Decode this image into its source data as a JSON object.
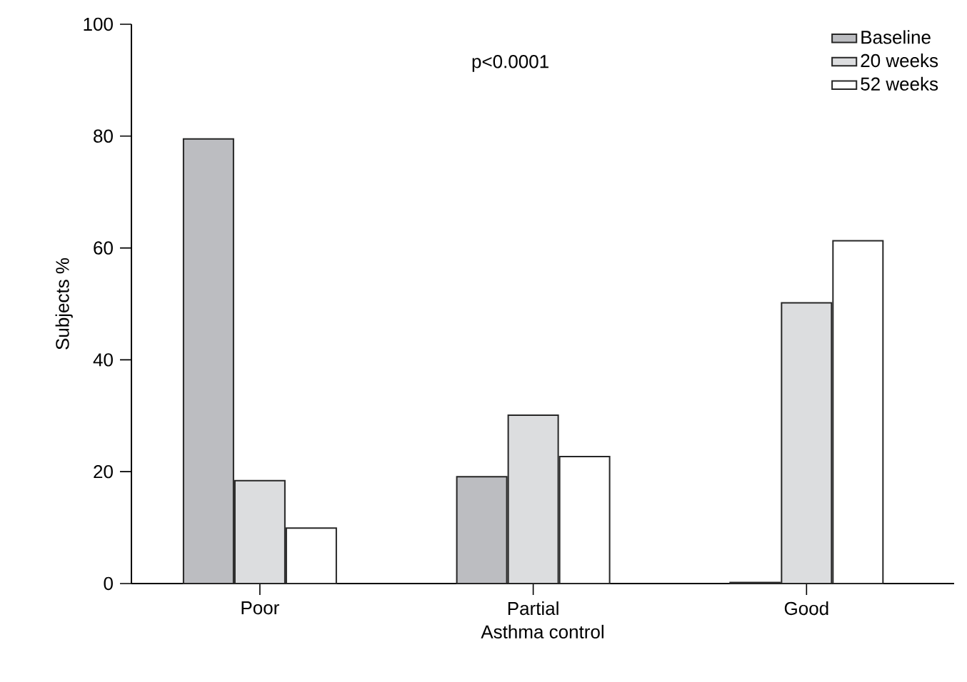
{
  "chart_data": {
    "type": "bar",
    "xlabel": "Asthma control",
    "ylabel": "Subjects %",
    "categories": [
      "Poor",
      "Partial",
      "Good"
    ],
    "series": [
      {
        "name": "Baseline",
        "color": "#bcbdc1",
        "values": [
          79.5,
          19.1,
          0.2
        ]
      },
      {
        "name": "20 weeks",
        "color": "#dcdddf",
        "values": [
          18.4,
          30.1,
          50.2
        ]
      },
      {
        "name": "52 weeks",
        "color": "#ffffff",
        "values": [
          9.9,
          22.7,
          61.3
        ]
      }
    ],
    "ylim": [
      0,
      100
    ],
    "yticks": [
      0,
      20,
      40,
      60,
      80,
      100
    ],
    "annotations": [
      "p<0.0001"
    ],
    "legend": "top right",
    "grid": false
  }
}
